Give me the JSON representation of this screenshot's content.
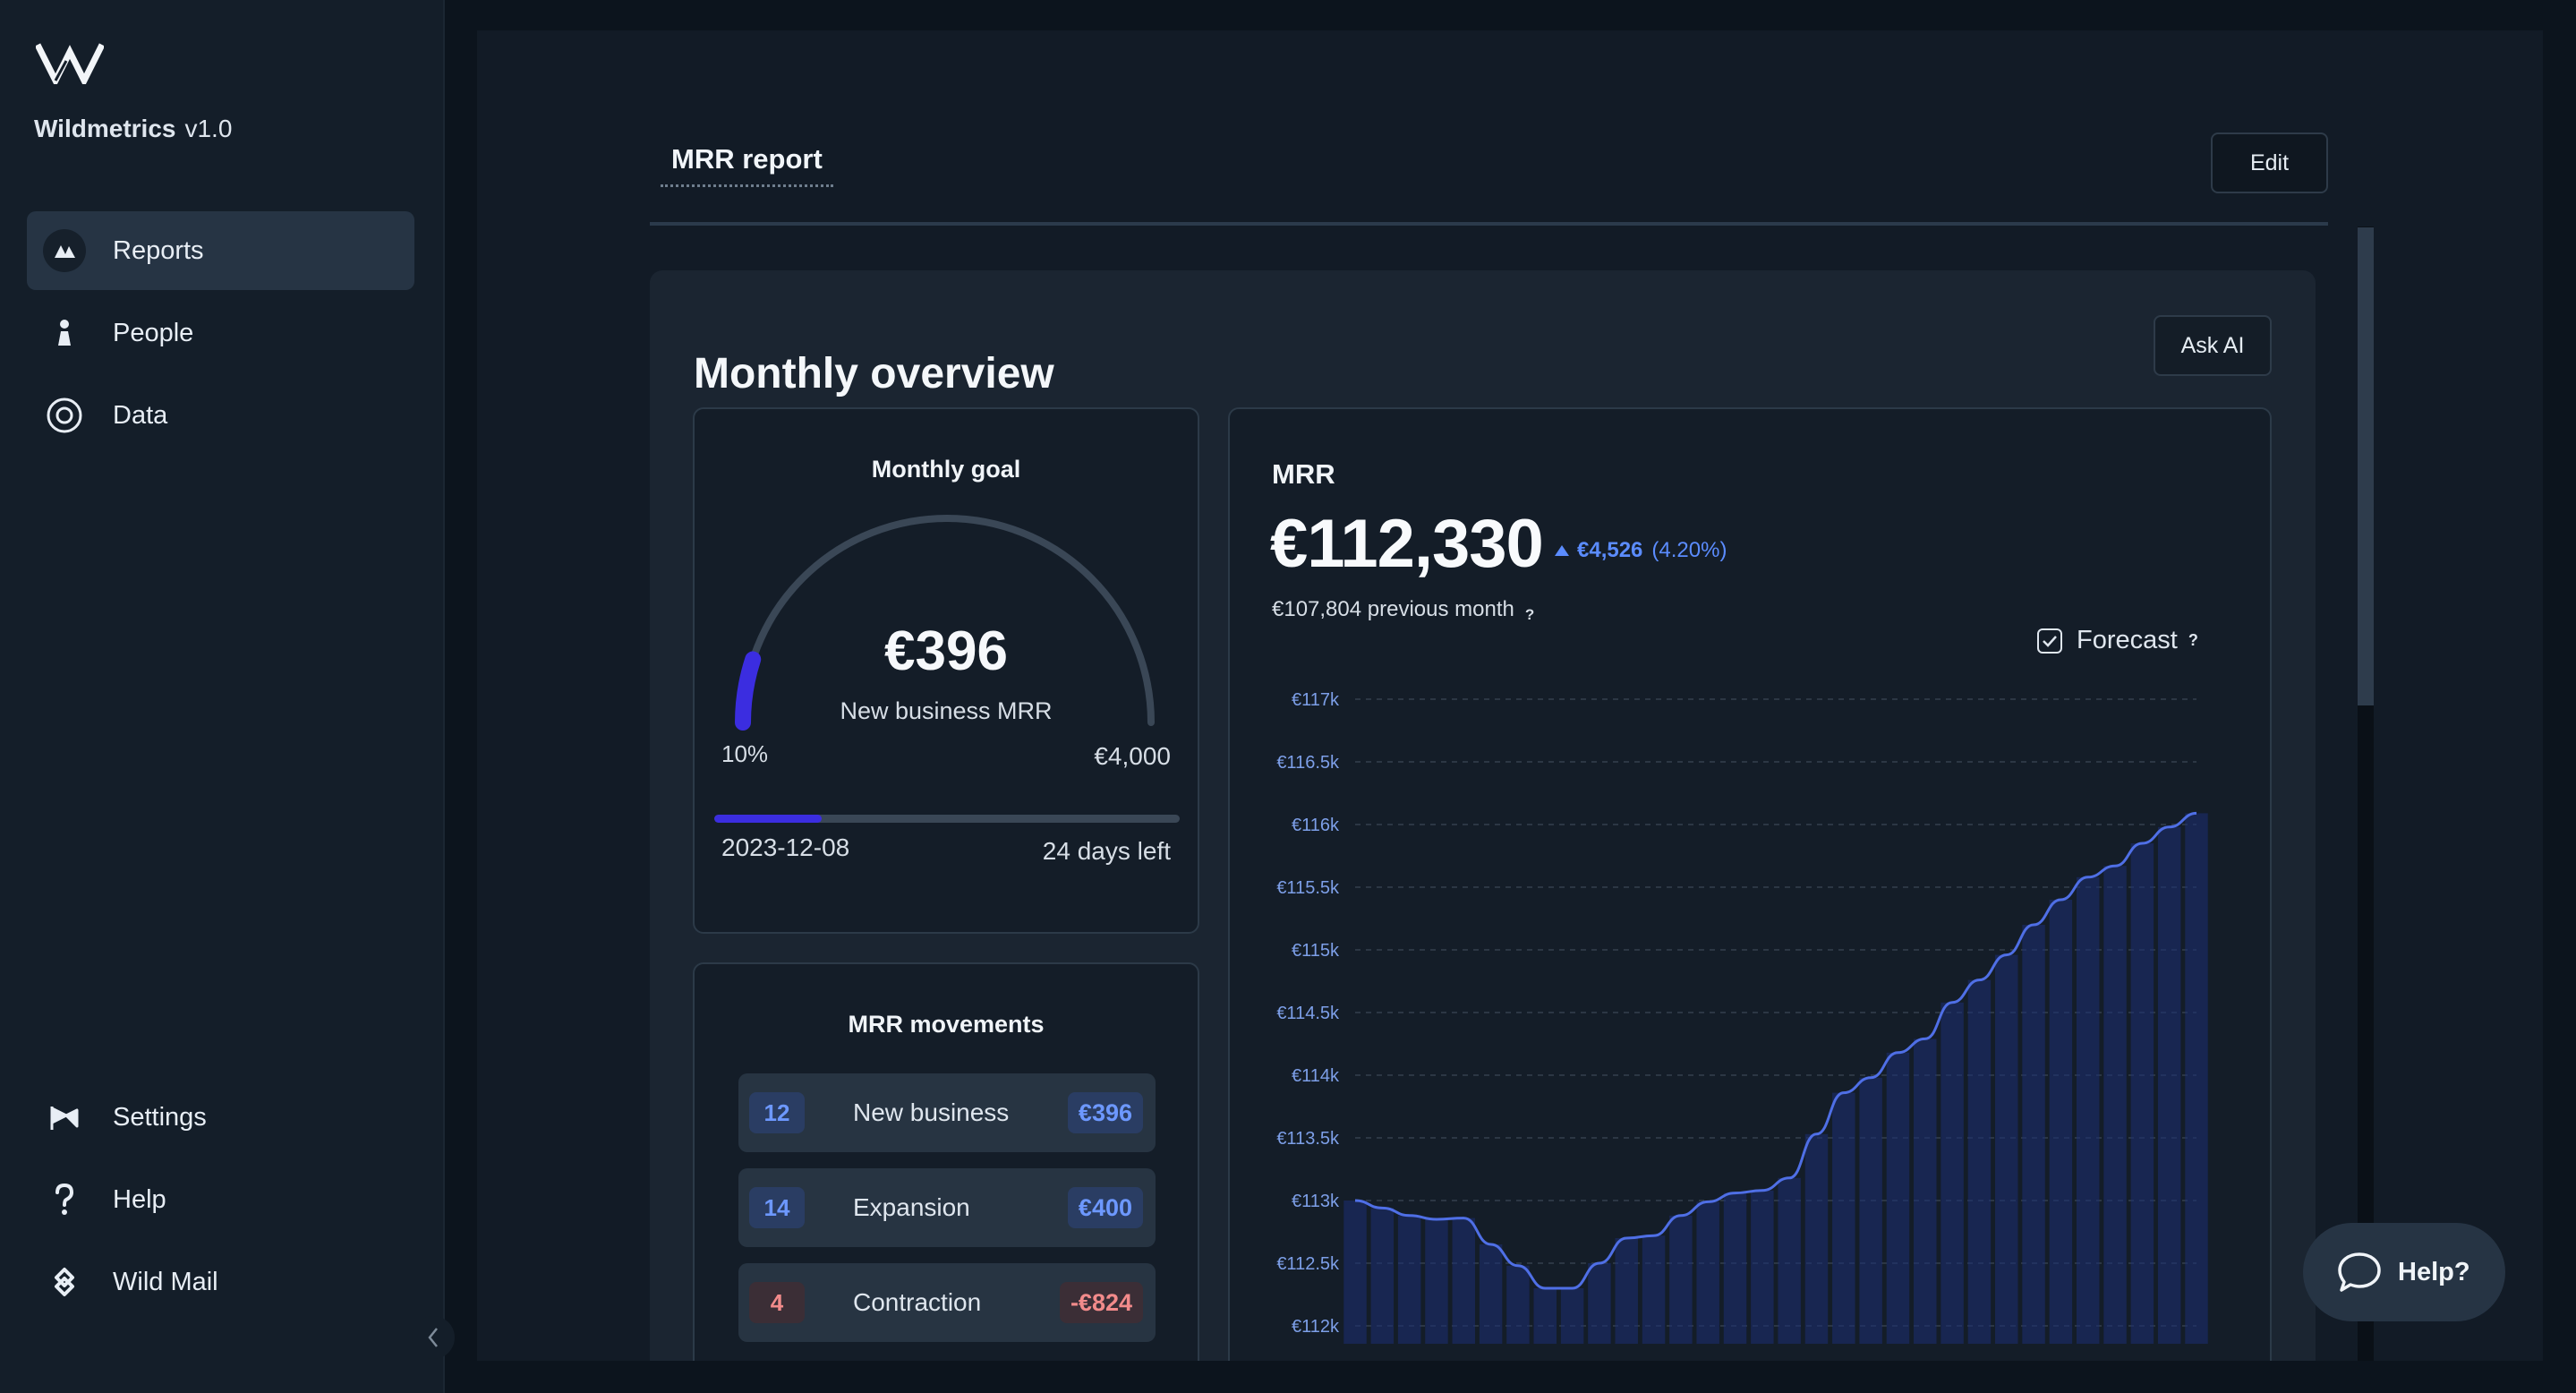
{
  "app": {
    "name": "Wildmetrics",
    "version": "v1.0"
  },
  "nav": {
    "main": [
      {
        "label": "Reports",
        "icon": "reports-icon",
        "active": true
      },
      {
        "label": "People",
        "icon": "person-icon"
      },
      {
        "label": "Data",
        "icon": "data-icon"
      }
    ],
    "bottom": [
      {
        "label": "Settings",
        "icon": "settings-icon"
      },
      {
        "label": "Help",
        "icon": "question-icon"
      },
      {
        "label": "Wild Mail",
        "icon": "mail-icon"
      }
    ]
  },
  "header": {
    "tab": "MRR report",
    "edit_label": "Edit"
  },
  "overview": {
    "title": "Monthly overview",
    "ask_ai_label": "Ask AI",
    "goal": {
      "title": "Monthly goal",
      "value": "€396",
      "subtitle": "New business MRR",
      "percent_label": "10%",
      "progress": 0.1,
      "max_label": "€4,000",
      "date": "2023-12-08",
      "days_left": "24 days left",
      "time_progress": 0.23
    },
    "movements": {
      "title": "MRR movements",
      "rows": [
        {
          "count": "12",
          "label": "New business",
          "amount": "€396",
          "tone": "blue"
        },
        {
          "count": "14",
          "label": "Expansion",
          "amount": "€400",
          "tone": "blue"
        },
        {
          "count": "4",
          "label": "Contraction",
          "amount": "-€824",
          "tone": "red"
        }
      ]
    },
    "mrr": {
      "label": "MRR",
      "value": "€112,330",
      "delta": "€4,526",
      "delta_pct": "(4.20%)",
      "previous": "€107,804 previous month",
      "help_mark": "?",
      "forecast_label": "Forecast",
      "forecast_checked": true
    }
  },
  "help_widget": {
    "label": "Help?"
  },
  "colors": {
    "accent": "#3b2de0",
    "line": "#4f6fe6",
    "positive": "#5b8cff",
    "negative": "#f28b8b"
  },
  "chart_data": {
    "type": "line",
    "ylim": [
      112000,
      117000
    ],
    "yticks": [
      "€117k",
      "€116.5k",
      "€116k",
      "€115.5k",
      "€115k",
      "€114.5k",
      "€114k",
      "€113.5k",
      "€113k",
      "€112.5k",
      "€112k"
    ],
    "series": [
      {
        "values": [
          113000,
          112940,
          112880,
          112850,
          112860,
          112650,
          112480,
          112300,
          112300,
          112500,
          112700,
          112720,
          112880,
          112990,
          113060,
          113080,
          113180,
          113530,
          113860,
          113980,
          114180,
          114290,
          114580,
          114760,
          114960,
          115200,
          115400,
          115580,
          115670,
          115850,
          115980,
          116090
        ]
      }
    ]
  }
}
